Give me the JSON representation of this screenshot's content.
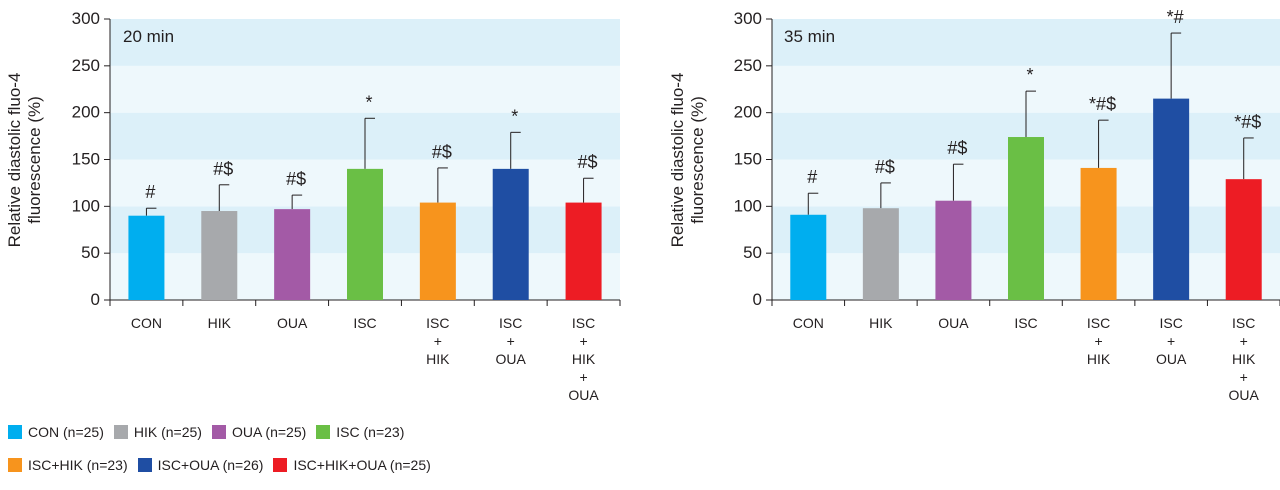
{
  "chart_data": [
    {
      "type": "bar",
      "label": "20 min",
      "ylabel": [
        "Relative diastolic fluo-4",
        "fluorescence (%)"
      ],
      "categories": [
        "CON",
        "HIK",
        "OUA",
        "ISC",
        "ISC\n+\nHIK",
        "ISC\n+\nOUA",
        "ISC\n+\nHIK\n+\nOUA"
      ],
      "values": [
        90,
        95,
        97,
        140,
        104,
        140,
        104
      ],
      "errors": [
        8,
        28,
        15,
        54,
        37,
        39,
        26
      ],
      "annotations": [
        "#",
        "#$",
        "#$",
        "*",
        "#$",
        "*",
        "#$"
      ],
      "colors": [
        "#00aeef",
        "#a7a9ac",
        "#a35aa6",
        "#6abf45",
        "#f7941d",
        "#1f4ea3",
        "#ed1c24"
      ],
      "ylim": [
        0,
        300
      ],
      "yticks": [
        0,
        50,
        100,
        150,
        200,
        250,
        300
      ],
      "band_colors": [
        "#eef8fc",
        "#dcf0f9"
      ]
    },
    {
      "type": "bar",
      "label": "35 min",
      "ylabel": [
        "Relative diastolic fluo-4",
        "fluorescence (%)"
      ],
      "categories": [
        "CON",
        "HIK",
        "OUA",
        "ISC",
        "ISC\n+\nHIK",
        "ISC\n+\nOUA",
        "ISC\n+\nHIK\n+\nOUA"
      ],
      "values": [
        91,
        98,
        106,
        174,
        141,
        215,
        129
      ],
      "errors": [
        23,
        27,
        39,
        49,
        51,
        70,
        44
      ],
      "annotations": [
        "#",
        "#$",
        "#$",
        "*",
        "*#$",
        "*#",
        "*#$"
      ],
      "colors": [
        "#00aeef",
        "#a7a9ac",
        "#a35aa6",
        "#6abf45",
        "#f7941d",
        "#1f4ea3",
        "#ed1c24"
      ],
      "ylim": [
        0,
        300
      ],
      "yticks": [
        0,
        50,
        100,
        150,
        200,
        250,
        300
      ],
      "band_colors": [
        "#eef8fc",
        "#dcf0f9"
      ]
    }
  ],
  "legend": {
    "rows": [
      [
        {
          "label": "CON (n=25)",
          "color": "#00aeef"
        },
        {
          "label": "HIK (n=25)",
          "color": "#a7a9ac"
        },
        {
          "label": "OUA (n=25)",
          "color": "#a35aa6"
        },
        {
          "label": "ISC (n=23)",
          "color": "#6abf45"
        }
      ],
      [
        {
          "label": "ISC+HIK (n=23)",
          "color": "#f7941d"
        },
        {
          "label": "ISC+OUA (n=26)",
          "color": "#1f4ea3"
        },
        {
          "label": "ISC+HIK+OUA (n=25)",
          "color": "#ed1c24"
        }
      ]
    ]
  }
}
